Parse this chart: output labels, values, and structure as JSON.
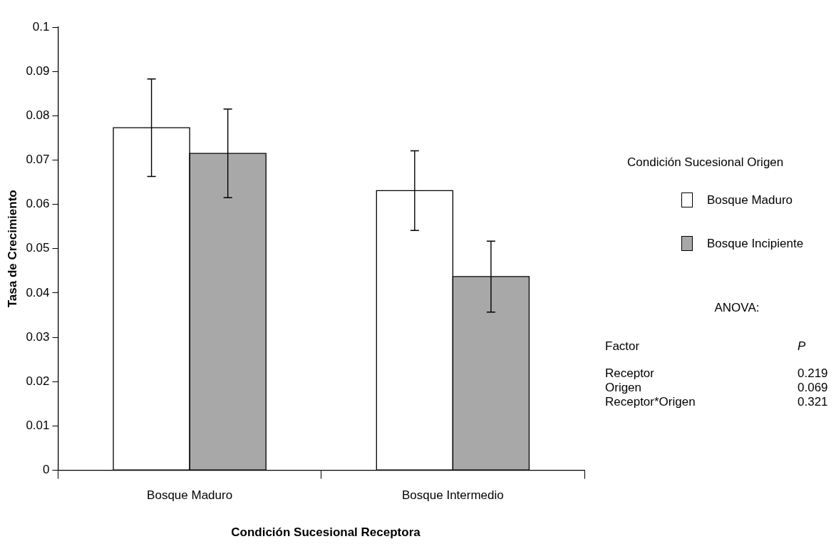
{
  "chart_data": {
    "type": "bar",
    "xlabel": "Condición Sucesional Receptora",
    "ylabel": "Tasa de Crecimiento",
    "legend_title": "Condición Sucesional Origen",
    "legend": "right",
    "categories": [
      "Bosque Maduro",
      "Bosque Intermedio"
    ],
    "series": [
      {
        "name": "Bosque Maduro",
        "color": "#ffffff",
        "values": [
          0.0773,
          0.0631
        ],
        "errors": [
          0.011,
          0.009
        ]
      },
      {
        "name": "Bosque Incipiente",
        "color": "#a8a8a8",
        "values": [
          0.0715,
          0.0437
        ],
        "errors": [
          0.01,
          0.008
        ]
      }
    ],
    "ylim": [
      0,
      0.1
    ],
    "yticks": [
      0,
      0.01,
      0.02,
      0.03,
      0.04,
      0.05,
      0.06,
      0.07,
      0.08,
      0.09,
      0.1
    ],
    "grid": false,
    "annotations": [
      "ANOVA:",
      "Factor",
      "P",
      "Receptor",
      "0.219",
      "Origen",
      "0.069",
      "Receptor*Origen",
      "0.321"
    ]
  }
}
